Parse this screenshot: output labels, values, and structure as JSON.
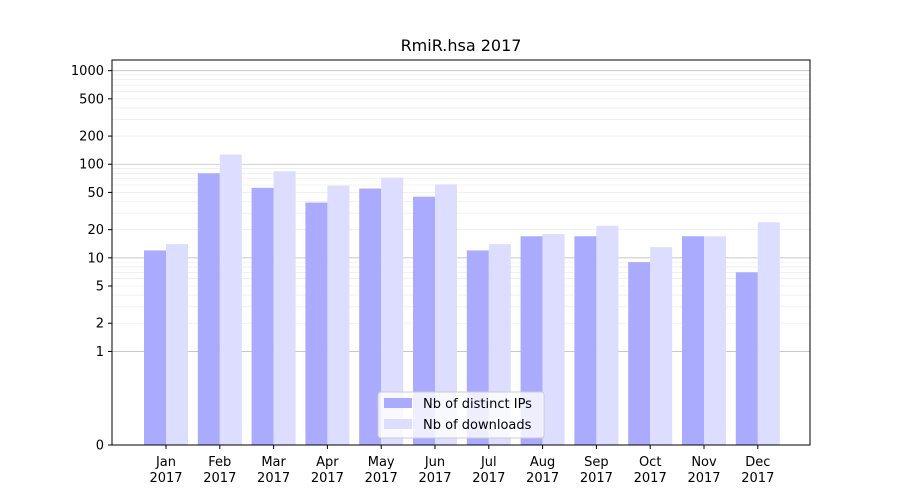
{
  "chart_data": {
    "type": "bar",
    "title": "RmiR.hsa 2017",
    "xlabel": "",
    "ylabel": "",
    "y_scale": "symlog",
    "ylim": [
      0,
      1300
    ],
    "y_ticks": [
      0,
      1,
      2,
      5,
      10,
      20,
      50,
      100,
      200,
      500,
      1000
    ],
    "grid": "horizontal",
    "legend_position": "bottom-center",
    "categories": [
      [
        "Jan",
        "2017"
      ],
      [
        "Feb",
        "2017"
      ],
      [
        "Mar",
        "2017"
      ],
      [
        "Apr",
        "2017"
      ],
      [
        "May",
        "2017"
      ],
      [
        "Jun",
        "2017"
      ],
      [
        "Jul",
        "2017"
      ],
      [
        "Aug",
        "2017"
      ],
      [
        "Sep",
        "2017"
      ],
      [
        "Oct",
        "2017"
      ],
      [
        "Nov",
        "2017"
      ],
      [
        "Dec",
        "2017"
      ]
    ],
    "series": [
      {
        "name": "Nb of distinct IPs",
        "color": "#aaaaff",
        "values": [
          12,
          80,
          56,
          39,
          55,
          45,
          12,
          17,
          17,
          9,
          17,
          7
        ]
      },
      {
        "name": "Nb of downloads",
        "color": "#ddddff",
        "values": [
          14,
          127,
          84,
          59,
          72,
          61,
          14,
          18,
          22,
          13,
          17,
          24
        ]
      }
    ]
  }
}
